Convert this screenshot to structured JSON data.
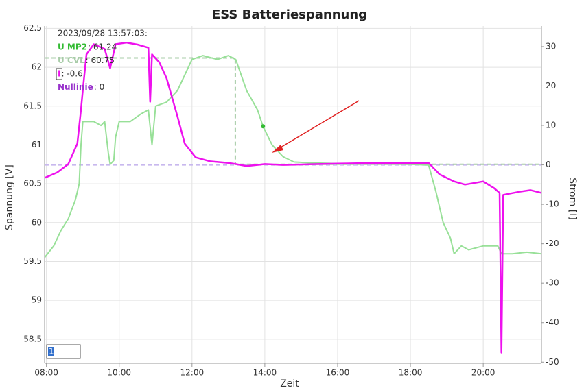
{
  "chart_data": {
    "type": "line",
    "title": "ESS Batteriespannung",
    "x_label": "Zeit",
    "y_label": "Spannung [V]",
    "y2_label": "Strom [I]",
    "xlim": [
      7.95,
      21.6
    ],
    "xticks": [
      {
        "value": 8,
        "label": "08:00"
      },
      {
        "value": 10,
        "label": "10:00"
      },
      {
        "value": 12,
        "label": "12:00"
      },
      {
        "value": 14,
        "label": "14:00"
      },
      {
        "value": 16,
        "label": "16:00"
      },
      {
        "value": 18,
        "label": "18:00"
      },
      {
        "value": 20,
        "label": "20:00"
      }
    ],
    "ylim": [
      58.19,
      62.53
    ],
    "yticks": [
      58.5,
      59,
      59.5,
      60,
      60.5,
      61,
      61.5,
      62,
      62.5
    ],
    "y2lim": [
      -50.3,
      35.2
    ],
    "y2ticks": [
      -50,
      -40,
      -30,
      -20,
      -10,
      0,
      10,
      20,
      30
    ],
    "grid": true,
    "series": [
      {
        "name": "U MP2",
        "color": "#98e098",
        "legend_color": "#33bb33",
        "dash": false,
        "x": [
          7.95,
          8.2,
          8.4,
          8.6,
          8.8,
          8.9,
          8.95,
          9.0,
          9.3,
          9.5,
          9.6,
          9.7,
          9.75,
          9.85,
          9.9,
          10.0,
          10.3,
          10.6,
          10.8,
          10.9,
          11.0,
          11.3,
          11.6,
          11.8,
          12.0,
          12.3,
          12.7,
          13.0,
          13.2,
          13.5,
          13.8,
          13.95,
          14.2,
          14.5,
          14.8,
          15.2,
          16,
          17,
          18,
          18.5,
          18.7,
          18.9,
          19.1,
          19.2,
          19.4,
          19.6,
          20.0,
          20.4,
          20.5,
          20.8,
          21.2,
          21.6
        ],
        "values": [
          59.55,
          59.7,
          59.9,
          60.05,
          60.3,
          60.5,
          61.0,
          61.3,
          61.3,
          61.25,
          61.3,
          60.9,
          60.75,
          60.8,
          61.1,
          61.3,
          61.3,
          61.4,
          61.45,
          61.0,
          61.5,
          61.55,
          61.7,
          61.9,
          62.1,
          62.15,
          62.1,
          62.15,
          62.1,
          61.7,
          61.45,
          61.24,
          61.0,
          60.85,
          60.78,
          60.77,
          60.76,
          60.76,
          60.75,
          60.74,
          60.4,
          60.0,
          59.8,
          59.6,
          59.7,
          59.65,
          59.7,
          59.7,
          59.6,
          59.6,
          59.62,
          59.6
        ]
      },
      {
        "name": "U CVL",
        "color": "#a8cca8",
        "legend_color": "#a8cca8",
        "dash": true,
        "x": [
          7.95,
          13.19,
          13.19,
          21.6
        ],
        "values": [
          62.12,
          62.12,
          60.75,
          60.75
        ]
      },
      {
        "name": "I",
        "color": "#ee11ee",
        "legend_color": "#ee11ee",
        "dash": false,
        "axis": "y2",
        "x": [
          7.95,
          8.3,
          8.6,
          8.85,
          8.95,
          9.0,
          9.1,
          9.3,
          9.6,
          9.75,
          9.9,
          10.2,
          10.5,
          10.8,
          10.85,
          10.9,
          11.1,
          11.3,
          11.6,
          11.8,
          12.1,
          12.5,
          13,
          13.2,
          13.5,
          14,
          14.5,
          15,
          16,
          17,
          18,
          18.5,
          18.8,
          19.2,
          19.5,
          20,
          20.3,
          20.45,
          20.5,
          20.55,
          21,
          21.3,
          21.6
        ],
        "values": [
          -3.3,
          -1.9,
          0.2,
          5.4,
          14,
          19,
          28,
          30.6,
          29.4,
          24.5,
          30.6,
          31,
          30.5,
          29.7,
          16,
          28,
          26,
          22,
          12.3,
          5.4,
          1.9,
          0.9,
          0.5,
          0.2,
          -0.3,
          0.2,
          0,
          0.1,
          0.3,
          0.5,
          0.5,
          0.5,
          -2.4,
          -4.2,
          -5,
          -4.2,
          -5.9,
          -7.1,
          -47.6,
          -7.6,
          -6.8,
          -6.4,
          -7.1
        ]
      },
      {
        "name": "Nullinie",
        "color": "#c8b8ee",
        "legend_color": "#9933cc",
        "dash": true,
        "axis": "y2",
        "x": [
          7.95,
          21.6
        ],
        "values": [
          0,
          0
        ]
      }
    ],
    "cursor": {
      "label": "2023/09/28 13:57:03:",
      "values": [
        61.24,
        60.75,
        -0.6,
        0
      ],
      "value_labels": [
        ": 61.24",
        ": 60.75",
        ": -0.6",
        ": 0"
      ]
    },
    "input": "1"
  }
}
